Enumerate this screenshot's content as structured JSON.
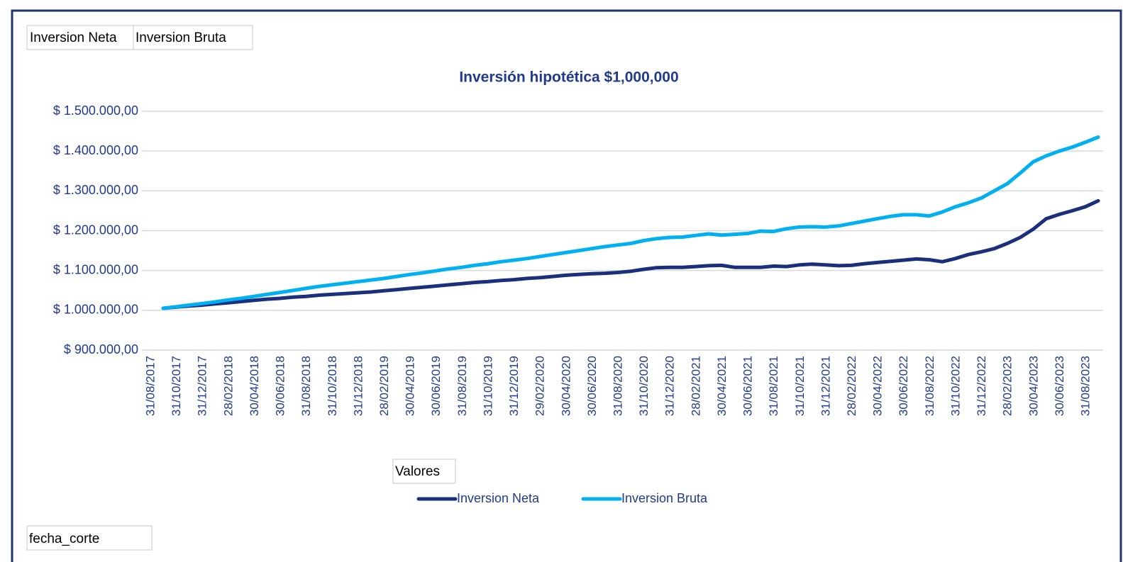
{
  "chart_data": {
    "type": "line",
    "title": "Inversión hipotética $1,000,000",
    "filter_buttons": [
      "Inversion Neta",
      "Inversion Bruta"
    ],
    "values_button": "Valores",
    "axis_button": "fecha_corte",
    "categories": [
      "31/08/2017",
      null,
      "31/10/2017",
      null,
      "31/12/2017",
      null,
      "28/02/2018",
      null,
      "30/04/2018",
      null,
      "30/06/2018",
      null,
      "31/08/2018",
      null,
      "31/10/2018",
      null,
      "31/12/2018",
      null,
      "28/02/2019",
      null,
      "30/04/2019",
      null,
      "30/06/2019",
      null,
      "31/08/2019",
      null,
      "31/10/2019",
      null,
      "31/12/2019",
      null,
      "29/02/2020",
      null,
      "30/04/2020",
      null,
      "30/06/2020",
      null,
      "31/08/2020",
      null,
      "31/10/2020",
      null,
      "31/12/2020",
      null,
      "28/02/2021",
      null,
      "30/04/2021",
      null,
      "30/06/2021",
      null,
      "31/08/2021",
      null,
      "31/10/2021",
      null,
      "31/12/2021",
      null,
      "28/02/2022",
      null,
      "30/04/2022",
      null,
      "30/06/2022",
      null,
      "31/08/2022",
      null,
      "31/10/2022",
      null,
      "31/12/2022",
      null,
      "28/02/2023",
      null,
      "30/04/2023",
      null,
      "30/06/2023",
      null,
      "31/08/2023"
    ],
    "series": [
      {
        "name": "Inversion Neta",
        "color": "#1b2f7d",
        "values": [
          1005000,
          1008000,
          1011000,
          1013000,
          1016000,
          1019000,
          1022000,
          1025000,
          1028000,
          1030000,
          1033000,
          1035000,
          1038000,
          1040000,
          1042000,
          1044000,
          1046000,
          1049000,
          1052000,
          1055000,
          1058000,
          1061000,
          1064000,
          1067000,
          1070000,
          1072000,
          1075000,
          1077000,
          1080000,
          1082000,
          1085000,
          1088000,
          1090000,
          1092000,
          1093000,
          1095000,
          1098000,
          1103000,
          1107000,
          1108000,
          1108000,
          1110000,
          1112000,
          1113000,
          1108000,
          1108000,
          1108000,
          1111000,
          1110000,
          1114000,
          1116000,
          1114000,
          1112000,
          1113000,
          1117000,
          1120000,
          1123000,
          1126000,
          1129000,
          1127000,
          1122000,
          1130000,
          1140000,
          1147000,
          1155000,
          1168000,
          1183000,
          1204000,
          1230000,
          1241000,
          1250000,
          1260000,
          1275000
        ]
      },
      {
        "name": "Inversion Bruta",
        "color": "#00b0f0",
        "values": [
          1005000,
          1009000,
          1013000,
          1017000,
          1021000,
          1026000,
          1030000,
          1035000,
          1040000,
          1045000,
          1050000,
          1055000,
          1060000,
          1064000,
          1068000,
          1072000,
          1076000,
          1080000,
          1085000,
          1090000,
          1094000,
          1099000,
          1104000,
          1108000,
          1113000,
          1117000,
          1122000,
          1126000,
          1130000,
          1135000,
          1140000,
          1145000,
          1150000,
          1155000,
          1160000,
          1164000,
          1168000,
          1175000,
          1180000,
          1183000,
          1184000,
          1188000,
          1192000,
          1189000,
          1191000,
          1193000,
          1199000,
          1198000,
          1205000,
          1209000,
          1210000,
          1209000,
          1212000,
          1218000,
          1224000,
          1230000,
          1236000,
          1240000,
          1240000,
          1237000,
          1247000,
          1260000,
          1270000,
          1282000,
          1300000,
          1318000,
          1345000,
          1373000,
          1388000,
          1400000,
          1410000,
          1422000,
          1435000
        ]
      }
    ],
    "ylim": [
      900000,
      1500000
    ],
    "yticks": [
      {
        "value": 900000,
        "label": "$ 900.000,00"
      },
      {
        "value": 1000000,
        "label": "$ 1.000.000,00"
      },
      {
        "value": 1100000,
        "label": "$ 1.100.000,00"
      },
      {
        "value": 1200000,
        "label": "$ 1.200.000,00"
      },
      {
        "value": 1300000,
        "label": "$ 1.300.000,00"
      },
      {
        "value": 1400000,
        "label": "$ 1.400.000,00"
      },
      {
        "value": 1500000,
        "label": "$ 1.500.000,00"
      }
    ],
    "grid": true,
    "legend": "bottom"
  }
}
